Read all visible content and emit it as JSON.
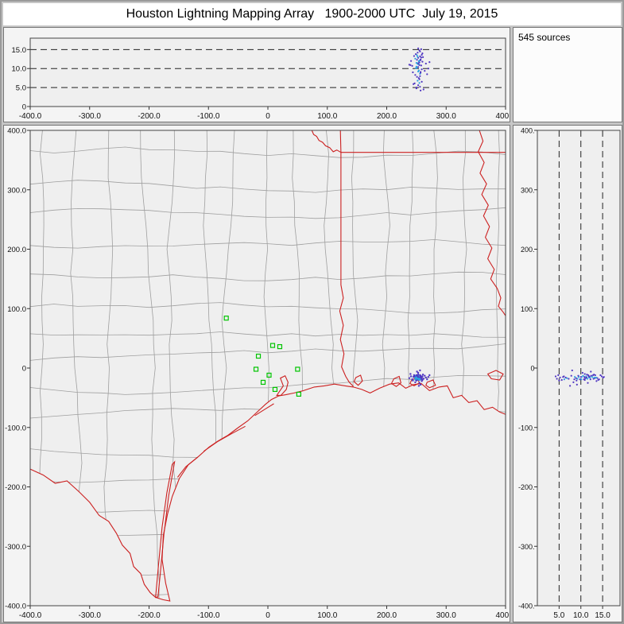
{
  "window": {
    "title": "Houston Lightning Mapping Array   1900-2000 UTC  July 19, 2015"
  },
  "sources_panel": {
    "label": "545 sources"
  },
  "colors": {
    "state_border": "#cc2020",
    "county": "#9f9f9f",
    "station": "#00c400",
    "source_main": "#5138c2",
    "source_core": "#2ba3e0",
    "dash": "#222222",
    "plot_bg": "#efefef",
    "axis": "#333333"
  },
  "chart_data": {
    "type": "scatter",
    "title": "Houston Lightning Mapping Array 1900-2000 UTC July 19, 2015",
    "source_count": 545,
    "panels": [
      {
        "id": "altitude_vs_eastwest",
        "x": "east_km",
        "y": "altitude_km",
        "xlim": [
          -400,
          400
        ],
        "ylim": [
          0,
          18
        ],
        "grid": "dashed-horizontal"
      },
      {
        "id": "plan_view_map",
        "x": "east_km",
        "y": "north_km",
        "xlim": [
          -400,
          400
        ],
        "ylim": [
          -400,
          400
        ],
        "grid": "off"
      },
      {
        "id": "altitude_vs_northsouth",
        "x": "altitude_km",
        "y": "north_km",
        "xlim": [
          0,
          19
        ],
        "ylim": [
          -400,
          400
        ],
        "grid": "dashed-vertical"
      }
    ],
    "axes": {
      "km_tick_values": [
        -400,
        -300,
        -200,
        -100,
        0,
        100,
        200,
        300,
        400
      ],
      "km_tick_labels": [
        "-400.0",
        "-300.0",
        "-200.0",
        "-100.0",
        "0",
        "100.0",
        "200.0",
        "300.0",
        "400.0"
      ],
      "ns_tick_values": [
        400,
        300,
        200,
        100,
        0,
        -100,
        -200,
        -300,
        -400
      ],
      "ns_tick_labels": [
        "400.0",
        "300.0",
        "200.0",
        "100.0",
        "0",
        "-100.0",
        "-200.0",
        "-300.0",
        "-400.0"
      ],
      "ns_tick_labels_short": [
        "400.",
        "300.",
        "200.",
        "100.",
        "0",
        "-100.",
        "-200.",
        "-300.",
        "-400."
      ],
      "alt_tick_values_top": [
        15,
        10,
        5,
        0
      ],
      "alt_tick_labels_top": [
        "15.0",
        "10.0",
        "5.0",
        "0"
      ],
      "alt_tick_values_right": [
        5,
        10,
        15
      ],
      "alt_tick_labels_right": [
        "5.0",
        "10.0",
        "15.0"
      ],
      "alt_dashed_levels": [
        5,
        10,
        15
      ],
      "alt_range_top": [
        0,
        18
      ],
      "alt_range_right": [
        0,
        19
      ],
      "km_range": [
        -400,
        400
      ]
    },
    "points_east_north_alt_km": [
      [
        252,
        -14,
        11.2,
        1
      ],
      [
        255,
        -16,
        12.1,
        1
      ],
      [
        258,
        -15,
        10.8
      ],
      [
        250,
        -18,
        11.5,
        1
      ],
      [
        253,
        -12,
        12.8
      ],
      [
        256,
        -17,
        13.2
      ],
      [
        259,
        -19,
        9.8
      ],
      [
        251,
        -15,
        10.2,
        1
      ],
      [
        254,
        -16,
        11.9,
        1
      ],
      [
        257,
        -13,
        12.4
      ],
      [
        249,
        -17,
        13.8
      ],
      [
        252,
        -19,
        14.2
      ],
      [
        255,
        -14,
        14.8
      ],
      [
        258,
        -16,
        15.1
      ],
      [
        253,
        -18,
        9.2,
        1
      ],
      [
        256,
        -15,
        8.6,
        1
      ],
      [
        250,
        -13,
        10.5,
        1
      ],
      [
        254,
        -17,
        11.1,
        1
      ],
      [
        257,
        -19,
        12.2
      ],
      [
        251,
        -16,
        13.5,
        1
      ],
      [
        260,
        -14,
        11.8
      ],
      [
        248,
        -15,
        12.6,
        1
      ],
      [
        255,
        -20,
        10.9
      ],
      [
        253,
        -11,
        11.4
      ],
      [
        258,
        -18,
        12.9
      ],
      [
        252,
        -16,
        13.1,
        1
      ],
      [
        256,
        -12,
        14.5
      ],
      [
        249,
        -19,
        10.1,
        1
      ],
      [
        254,
        -15,
        9.5,
        1
      ],
      [
        257,
        -17,
        8.9
      ],
      [
        251,
        -13,
        7.8
      ],
      [
        255,
        -18,
        7.2
      ],
      [
        259,
        -16,
        6.5
      ],
      [
        247,
        -14,
        6.1
      ],
      [
        253,
        -20,
        5.6
      ],
      [
        256,
        -16,
        5.2
      ],
      [
        250,
        -12,
        4.8
      ],
      [
        262,
        -18,
        4.5
      ],
      [
        245,
        -15,
        5.9
      ],
      [
        252,
        -17,
        6.8,
        1
      ],
      [
        264,
        -13,
        9.4
      ],
      [
        243,
        -19,
        10.7
      ],
      [
        266,
        -16,
        11.3
      ],
      [
        241,
        -14,
        12.0
      ],
      [
        255,
        -25,
        11.6
      ],
      [
        253,
        -8,
        10.4
      ],
      [
        257,
        -28,
        9.1
      ],
      [
        251,
        -6,
        12.3
      ],
      [
        259,
        -22,
        13.6
      ],
      [
        248,
        -24,
        8.3
      ],
      [
        270,
        -15,
        10.0
      ],
      [
        238,
        -17,
        11.0
      ],
      [
        254,
        -30,
        7.5
      ],
      [
        256,
        -4,
        8.0
      ],
      [
        260,
        -20,
        14.0
      ],
      [
        246,
        -12,
        13.3
      ],
      [
        253,
        -15,
        15.3
      ],
      [
        257,
        -14,
        4.2
      ],
      [
        250,
        -21,
        5.0
      ],
      [
        255,
        -19,
        6.2,
        1
      ],
      [
        261,
        -11,
        13.0
      ],
      [
        244,
        -21,
        9.0
      ],
      [
        268,
        -19,
        8.5
      ],
      [
        240,
        -10,
        10.9
      ],
      [
        272,
        -12,
        11.7
      ]
    ],
    "stations_east_north_km": [
      [
        -70,
        84
      ],
      [
        8,
        38
      ],
      [
        20,
        36
      ],
      [
        -16,
        20
      ],
      [
        -20,
        -2
      ],
      [
        2,
        -12
      ],
      [
        -8,
        -24
      ],
      [
        12,
        -36
      ],
      [
        50,
        -2
      ],
      [
        52,
        -44
      ]
    ],
    "map_features": {
      "coast_border_km": [
        [
          -400,
          -170
        ],
        [
          -378,
          -180
        ],
        [
          -358,
          -194
        ],
        [
          -338,
          -190
        ],
        [
          -318,
          -208
        ],
        [
          -300,
          -226
        ],
        [
          -284,
          -248
        ],
        [
          -268,
          -258
        ],
        [
          -255,
          -278
        ],
        [
          -245,
          -298
        ],
        [
          -232,
          -312
        ],
        [
          -226,
          -334
        ],
        [
          -214,
          -346
        ],
        [
          -208,
          -364
        ],
        [
          -198,
          -378
        ],
        [
          -189,
          -386
        ],
        [
          -176,
          -390
        ],
        [
          -165,
          -392
        ],
        [
          -172,
          -362
        ],
        [
          -178,
          -322
        ],
        [
          -176,
          -282
        ],
        [
          -169,
          -246
        ],
        [
          -161,
          -216
        ],
        [
          -149,
          -186
        ],
        [
          -134,
          -163
        ],
        [
          -117,
          -149
        ],
        [
          -99,
          -133
        ],
        [
          -84,
          -123
        ],
        [
          -67,
          -113
        ],
        [
          -51,
          -101
        ],
        [
          -34,
          -89
        ],
        [
          -17,
          -73
        ],
        [
          -4,
          -61
        ],
        [
          6,
          -53
        ],
        [
          18,
          -47
        ],
        [
          30,
          -45
        ],
        [
          44,
          -42
        ],
        [
          60,
          -38
        ],
        [
          78,
          -32
        ],
        [
          95,
          -30
        ],
        [
          112,
          -27
        ],
        [
          130,
          -30
        ],
        [
          144,
          -32
        ],
        [
          158,
          -36
        ],
        [
          172,
          -42
        ],
        [
          188,
          -34
        ],
        [
          205,
          -27
        ],
        [
          220,
          -25
        ],
        [
          232,
          -34
        ],
        [
          245,
          -28
        ],
        [
          258,
          -26
        ],
        [
          272,
          -38
        ],
        [
          288,
          -32
        ],
        [
          302,
          -30
        ],
        [
          312,
          -50
        ],
        [
          326,
          -46
        ],
        [
          338,
          -58
        ],
        [
          352,
          -55
        ],
        [
          364,
          -70
        ],
        [
          378,
          -66
        ],
        [
          390,
          -74
        ],
        [
          400,
          -78
        ]
      ],
      "red_lines_km": [
        {
          "name": "tx_la_sabine_border",
          "closed": false,
          "pts": [
            [
              123,
              363
            ],
            [
              123,
              260
            ],
            [
              123,
              140
            ],
            [
              127,
              118
            ],
            [
              121,
              96
            ],
            [
              127,
              72
            ],
            [
              122,
              48
            ],
            [
              128,
              24
            ],
            [
              124,
              2
            ],
            [
              131,
              -14
            ],
            [
              137,
              -24
            ],
            [
              144,
              -31
            ]
          ]
        },
        {
          "name": "ar_la_border",
          "closed": false,
          "pts": [
            [
              123,
              363
            ],
            [
              400,
              363
            ]
          ]
        },
        {
          "name": "ok_ar_border",
          "closed": false,
          "pts": [
            [
              122,
              400
            ],
            [
              123,
              363
            ]
          ]
        },
        {
          "name": "red_river_border",
          "closed": false,
          "pts": [
            [
              123,
              363
            ],
            [
              116,
              367
            ],
            [
              110,
              364
            ],
            [
              104,
              371
            ],
            [
              97,
              374
            ],
            [
              92,
              380
            ],
            [
              86,
              383
            ],
            [
              82,
              390
            ],
            [
              77,
              393
            ],
            [
              74,
              400
            ]
          ]
        },
        {
          "name": "mississippi_river",
          "closed": false,
          "pts": [
            [
              356,
              400
            ],
            [
              362,
              382
            ],
            [
              354,
              364
            ],
            [
              364,
              346
            ],
            [
              357,
              328
            ],
            [
              368,
              310
            ],
            [
              360,
              292
            ],
            [
              371,
              274
            ],
            [
              363,
              256
            ],
            [
              373,
              238
            ],
            [
              366,
              220
            ],
            [
              377,
              202
            ],
            [
              370,
              184
            ],
            [
              381,
              166
            ],
            [
              375,
              150
            ],
            [
              386,
              134
            ],
            [
              392,
              118
            ],
            [
              388,
              104
            ],
            [
              396,
              94
            ],
            [
              400,
              88
            ]
          ]
        },
        {
          "name": "padre_island",
          "closed": true,
          "pts": [
            [
              -157,
              -158
            ],
            [
              -167,
              -215
            ],
            [
              -175,
              -280
            ],
            [
              -181,
              -345
            ],
            [
              -185,
              -385
            ],
            [
              -189,
              -386
            ],
            [
              -184,
              -330
            ],
            [
              -178,
              -268
            ],
            [
              -170,
              -210
            ],
            [
              -161,
              -162
            ]
          ]
        },
        {
          "name": "matagorda_island",
          "closed": false,
          "pts": [
            [
              -38,
              -98
            ],
            [
              -60,
              -110
            ],
            [
              -85,
              -124
            ],
            [
              -108,
              -140
            ]
          ]
        },
        {
          "name": "mustang_island",
          "closed": false,
          "pts": [
            [
              -118,
              -150
            ],
            [
              -138,
              -166
            ],
            [
              -152,
              -184
            ]
          ]
        },
        {
          "name": "galveston_island",
          "closed": false,
          "pts": [
            [
              10,
              -60
            ],
            [
              -6,
              -70
            ],
            [
              -22,
              -80
            ]
          ]
        },
        {
          "name": "galveston_bay",
          "closed": true,
          "pts": [
            [
              22,
              -46
            ],
            [
              31,
              -36
            ],
            [
              34,
              -24
            ],
            [
              29,
              -13
            ],
            [
              21,
              -17
            ],
            [
              26,
              -30
            ],
            [
              19,
              -40
            ],
            [
              15,
              -46
            ]
          ]
        },
        {
          "name": "sabine_lake",
          "closed": true,
          "pts": [
            [
              148,
              -16
            ],
            [
              156,
              -12
            ],
            [
              159,
              -22
            ],
            [
              152,
              -29
            ],
            [
              145,
              -23
            ]
          ]
        },
        {
          "name": "calcasieu_lake",
          "closed": true,
          "pts": [
            [
              212,
              -18
            ],
            [
              221,
              -14
            ],
            [
              224,
              -25
            ],
            [
              216,
              -31
            ],
            [
              208,
              -26
            ]
          ]
        },
        {
          "name": "grand_lake",
          "closed": true,
          "pts": [
            [
              242,
              -20
            ],
            [
              251,
              -16
            ],
            [
              255,
              -25
            ],
            [
              246,
              -30
            ],
            [
              239,
              -26
            ]
          ]
        },
        {
          "name": "white_lake",
          "closed": true,
          "pts": [
            [
              268,
              -24
            ],
            [
              278,
              -20
            ],
            [
              282,
              -29
            ],
            [
              272,
              -33
            ],
            [
              266,
              -29
            ]
          ]
        },
        {
          "name": "lake_pontchartrain",
          "closed": true,
          "pts": [
            [
              370,
              -10
            ],
            [
              384,
              -4
            ],
            [
              396,
              -10
            ],
            [
              390,
              -20
            ],
            [
              376,
              -18
            ]
          ]
        }
      ]
    }
  }
}
